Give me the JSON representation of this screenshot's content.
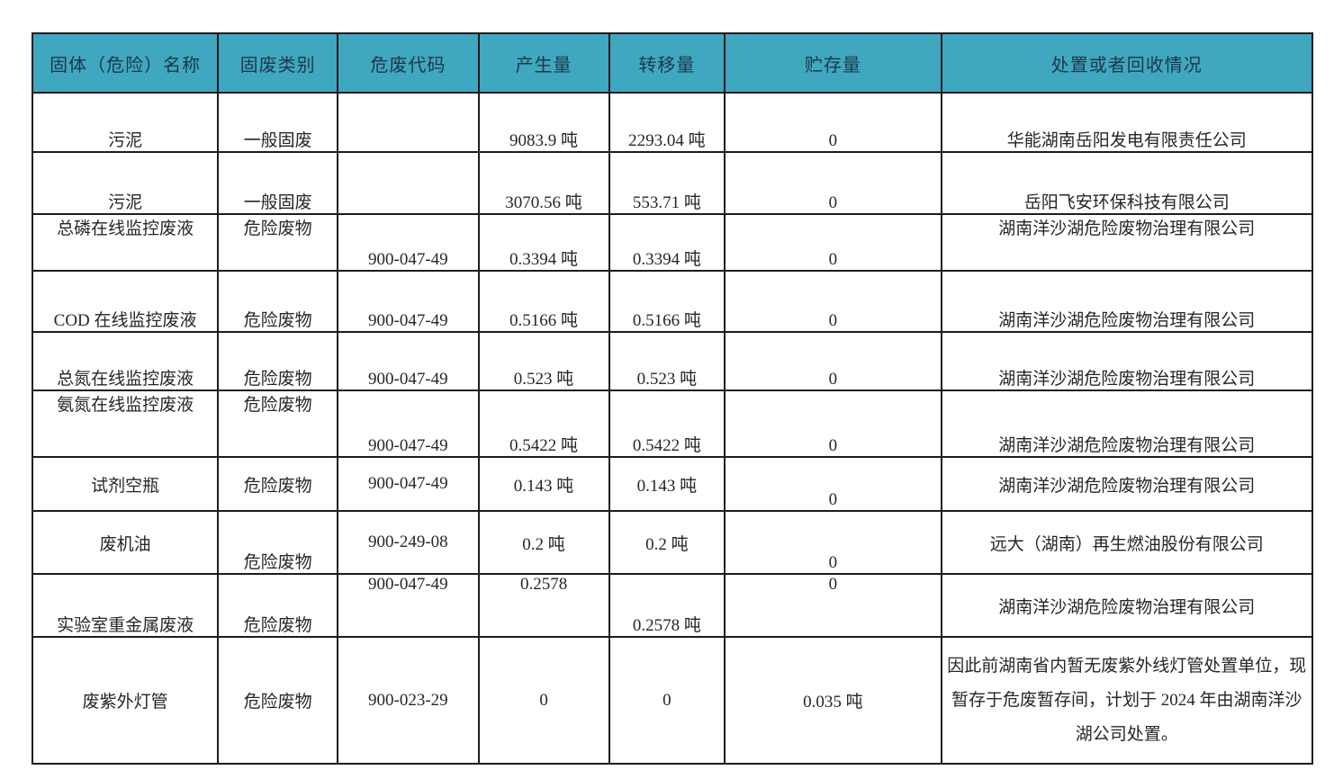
{
  "colors": {
    "header_bg": "#3FA7C0",
    "header_text": "#1C3947",
    "border": "#1c1c1c",
    "cell_text": "#262626",
    "page_bg": "#ffffff"
  },
  "table": {
    "headers": [
      "固体（危险）名称",
      "固废类别",
      "危废代码",
      "产生量",
      "转移量",
      "贮存量",
      "处置或者回收情况"
    ],
    "rows": [
      [
        "污泥",
        "一般固废",
        "",
        "9083.9 吨",
        "2293.04 吨",
        "0",
        "华能湖南岳阳发电有限责任公司"
      ],
      [
        "污泥",
        "一般固废",
        "",
        "3070.56 吨",
        "553.71 吨",
        "0",
        "岳阳飞安环保科技有限公司"
      ],
      [
        "总磷在线监控废液",
        "危险废物",
        "900-047-49",
        "0.3394 吨",
        "0.3394 吨",
        "0",
        "湖南洋沙湖危险废物治理有限公司"
      ],
      [
        "COD 在线监控废液",
        "危险废物",
        "900-047-49",
        "0.5166 吨",
        "0.5166 吨",
        "0",
        "湖南洋沙湖危险废物治理有限公司"
      ],
      [
        "总氮在线监控废液",
        "危险废物",
        "900-047-49",
        "0.523 吨",
        "0.523 吨",
        "0",
        "湖南洋沙湖危险废物治理有限公司"
      ],
      [
        "氨氮在线监控废液",
        "危险废物",
        "900-047-49",
        "0.5422 吨",
        "0.5422 吨",
        "0",
        "湖南洋沙湖危险废物治理有限公司"
      ],
      [
        "试剂空瓶",
        "危险废物",
        "900-047-49",
        "0.143 吨",
        "0.143 吨",
        "0",
        "湖南洋沙湖危险废物治理有限公司"
      ],
      [
        "废机油",
        "危险废物",
        "900-249-08",
        "0.2 吨",
        "0.2 吨",
        "0",
        "远大（湖南）再生燃油股份有限公司"
      ],
      [
        "实验室重金属废液",
        "危险废物",
        "900-047-49",
        "0.2578",
        "0.2578 吨",
        "0",
        "湖南洋沙湖危险废物治理有限公司"
      ],
      [
        "废紫外灯管",
        "危险废物",
        "900-023-29",
        "0",
        "0",
        "0.035 吨",
        "因此前湖南省内暂无废紫外线灯管处置单位，现暂存于危废暂存间，计划于 2024 年由湖南洋沙湖公司处置。"
      ]
    ]
  }
}
